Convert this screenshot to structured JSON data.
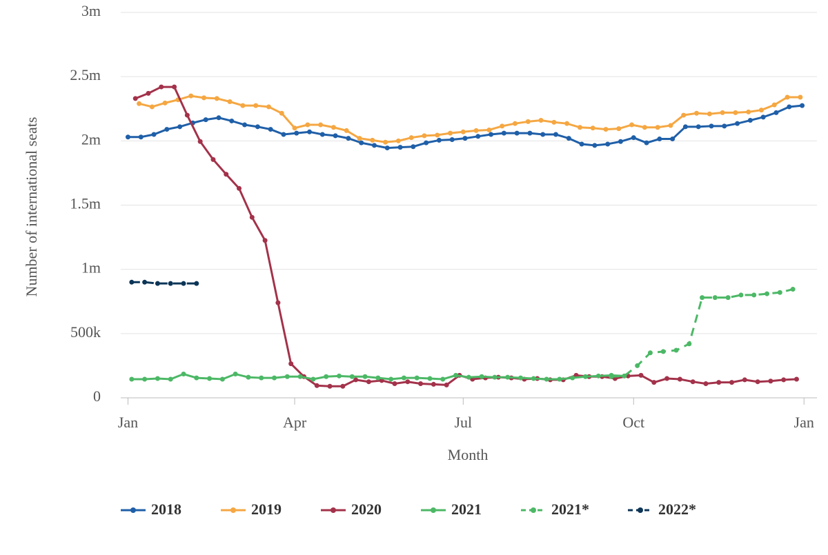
{
  "chart_data": {
    "type": "line",
    "x_label": "Month",
    "y_label": "Number of international seats",
    "xlim": [
      -8,
      372
    ],
    "xticks": [
      {
        "value": 0,
        "label": "Jan"
      },
      {
        "value": 90,
        "label": "Apr"
      },
      {
        "value": 181,
        "label": "Jul"
      },
      {
        "value": 273,
        "label": "Oct"
      },
      {
        "value": 365,
        "label": "Jan"
      }
    ],
    "ylim": [
      0,
      3000000
    ],
    "yticks": [
      0,
      {
        "value": 500000,
        "label": "500k"
      },
      {
        "value": 1000000,
        "label": "1m"
      },
      {
        "value": 1500000,
        "label": "1.5m"
      },
      {
        "value": 2000000,
        "label": "2m"
      },
      {
        "value": 2500000,
        "label": "2.5m"
      },
      {
        "value": 3000000,
        "label": "3m"
      }
    ],
    "grid": true,
    "legend": "bottom",
    "series": [
      {
        "name": "2018",
        "color": "#1f5fa8",
        "dashed": false,
        "x": [
          0,
          7,
          14,
          21,
          28,
          35,
          42,
          49,
          56,
          63,
          70,
          77,
          84,
          91,
          98,
          105,
          112,
          119,
          126,
          133,
          140,
          147,
          154,
          161,
          168,
          175,
          182,
          189,
          196,
          203,
          210,
          217,
          224,
          231,
          238,
          245,
          252,
          259,
          266,
          273,
          280,
          287,
          294,
          301,
          308,
          315,
          322,
          329,
          336,
          343,
          350,
          357,
          364
        ],
        "values": [
          2030000,
          2030000,
          2050000,
          2090000,
          2110000,
          2140000,
          2165000,
          2180000,
          2155000,
          2125000,
          2110000,
          2090000,
          2050000,
          2060000,
          2070000,
          2050000,
          2040000,
          2020000,
          1985000,
          1965000,
          1945000,
          1950000,
          1955000,
          1985000,
          2005000,
          2010000,
          2020000,
          2035000,
          2050000,
          2060000,
          2060000,
          2060000,
          2050000,
          2050000,
          2020000,
          1975000,
          1965000,
          1975000,
          1995000,
          2025000,
          1985000,
          2015000,
          2015000,
          2110000,
          2110000,
          2115000,
          2115000,
          2135000,
          2160000,
          2185000,
          2220000,
          2265000,
          2275000
        ]
      },
      {
        "name": "2019",
        "color": "#f5a742",
        "dashed": false,
        "x": [
          6,
          13,
          20,
          27,
          34,
          41,
          48,
          55,
          62,
          69,
          76,
          83,
          90,
          97,
          104,
          111,
          118,
          125,
          132,
          139,
          146,
          153,
          160,
          167,
          174,
          181,
          188,
          195,
          202,
          209,
          216,
          223,
          230,
          237,
          244,
          251,
          258,
          265,
          272,
          279,
          286,
          293,
          300,
          307,
          314,
          321,
          328,
          335,
          342,
          349,
          356,
          363
        ],
        "values": [
          2290000,
          2265000,
          2295000,
          2320000,
          2350000,
          2335000,
          2330000,
          2305000,
          2275000,
          2275000,
          2265000,
          2215000,
          2100000,
          2125000,
          2125000,
          2105000,
          2080000,
          2020000,
          2005000,
          1990000,
          2000000,
          2025000,
          2040000,
          2045000,
          2060000,
          2070000,
          2080000,
          2085000,
          2115000,
          2135000,
          2150000,
          2160000,
          2145000,
          2135000,
          2105000,
          2100000,
          2090000,
          2095000,
          2125000,
          2105000,
          2105000,
          2120000,
          2200000,
          2215000,
          2210000,
          2220000,
          2220000,
          2225000,
          2240000,
          2280000,
          2340000,
          2340000
        ]
      },
      {
        "name": "2020",
        "color": "#a3324a",
        "dashed": false,
        "x": [
          4,
          11,
          18,
          25,
          32,
          39,
          46,
          53,
          60,
          67,
          74,
          81,
          88,
          95,
          102,
          109,
          116,
          123,
          130,
          137,
          144,
          151,
          158,
          165,
          172,
          179,
          186,
          193,
          200,
          207,
          214,
          221,
          228,
          235,
          242,
          249,
          256,
          263,
          270,
          277,
          284,
          291,
          298,
          305,
          312,
          319,
          326,
          333,
          340,
          347,
          354,
          361
        ],
        "values": [
          2330000,
          2370000,
          2420000,
          2420000,
          2200000,
          1995000,
          1855000,
          1740000,
          1630000,
          1405000,
          1225000,
          740000,
          265000,
          165000,
          95000,
          90000,
          90000,
          140000,
          125000,
          135000,
          110000,
          125000,
          110000,
          105000,
          100000,
          175000,
          145000,
          155000,
          160000,
          155000,
          145000,
          150000,
          140000,
          140000,
          175000,
          165000,
          165000,
          150000,
          170000,
          175000,
          120000,
          150000,
          145000,
          125000,
          110000,
          120000,
          120000,
          140000,
          125000,
          130000,
          140000,
          145000
        ]
      },
      {
        "name": "2021",
        "color": "#4cb866",
        "dashed": false,
        "x": [
          2,
          9,
          16,
          23,
          30,
          37,
          44,
          51,
          58,
          65,
          72,
          79,
          86,
          93,
          100,
          107,
          114,
          121,
          128,
          135,
          142,
          149,
          156,
          163,
          170,
          177,
          184,
          191,
          198,
          205,
          212,
          219,
          226,
          233,
          240,
          247,
          254,
          261,
          268
        ],
        "values": [
          145000,
          145000,
          150000,
          145000,
          185000,
          155000,
          150000,
          145000,
          185000,
          160000,
          155000,
          155000,
          165000,
          165000,
          145000,
          165000,
          170000,
          165000,
          165000,
          155000,
          145000,
          155000,
          155000,
          150000,
          145000,
          175000,
          160000,
          165000,
          160000,
          160000,
          155000,
          150000,
          145000,
          145000,
          155000,
          165000,
          170000,
          175000,
          170000
        ]
      },
      {
        "name": "2021*",
        "color": "#4cb866",
        "dashed": true,
        "x": [
          261,
          268,
          275,
          282,
          289,
          296,
          303,
          310,
          317,
          324,
          331,
          338,
          345,
          352,
          359
        ],
        "values": [
          165000,
          170000,
          250000,
          350000,
          360000,
          370000,
          420000,
          780000,
          780000,
          780000,
          800000,
          800000,
          810000,
          820000,
          845000
        ]
      },
      {
        "name": "2022*",
        "color": "#0c3557",
        "dashed": true,
        "x": [
          2,
          9,
          16,
          23,
          30,
          37
        ],
        "values": [
          900000,
          900000,
          890000,
          890000,
          890000,
          890000
        ]
      }
    ]
  }
}
